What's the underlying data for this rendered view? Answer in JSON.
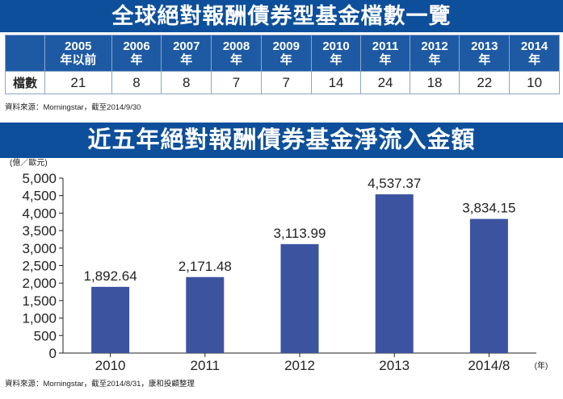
{
  "table_title": "全球絕對報酬債券型基金檔數一覽",
  "table": {
    "corner": "",
    "years": [
      {
        "line1": "2005",
        "line2": "年以前"
      },
      {
        "line1": "2006",
        "line2": "年"
      },
      {
        "line1": "2007",
        "line2": "年"
      },
      {
        "line1": "2008",
        "line2": "年"
      },
      {
        "line1": "2009",
        "line2": "年"
      },
      {
        "line1": "2010",
        "line2": "年"
      },
      {
        "line1": "2011",
        "line2": "年"
      },
      {
        "line1": "2012",
        "line2": "年"
      },
      {
        "line1": "2013",
        "line2": "年"
      },
      {
        "line1": "2014",
        "line2": "年"
      }
    ],
    "row_label": "檔數",
    "counts": [
      "21",
      "8",
      "8",
      "7",
      "7",
      "14",
      "24",
      "18",
      "22",
      "10"
    ]
  },
  "table_source": "資料來源：Morningstar，截至2014/9/30",
  "chart_title": "近五年絕對報酬債券基金淨流入金額",
  "chart_source": "資料來源：Morningstar，截至2014/8/31，康和投顧整理",
  "colors": {
    "banner": "#0d4f9b",
    "header": "#1e5aa4",
    "bar": "#3c53a0"
  },
  "chart_data": {
    "type": "bar",
    "title": "近五年絕對報酬債券基金淨流入金額",
    "xlabel": "(年)",
    "ylabel": "(億／歐元)",
    "ylim": [
      0,
      5000
    ],
    "yticks": [
      "0",
      "500",
      "1,000",
      "1,500",
      "2,000",
      "2,500",
      "3,000",
      "3,500",
      "4,000",
      "4,500",
      "5,000"
    ],
    "categories": [
      "2010",
      "2011",
      "2012",
      "2013",
      "2014/8"
    ],
    "values": [
      1892.64,
      2171.48,
      3113.99,
      4537.37,
      3834.15
    ],
    "value_labels": [
      "1,892.64",
      "2,171.48",
      "3,113.99",
      "4,537.37",
      "3,834.15"
    ],
    "grid": false
  }
}
